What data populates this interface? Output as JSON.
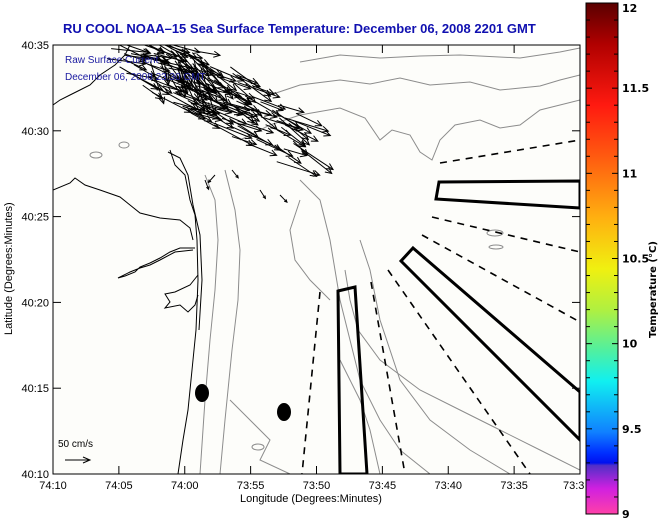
{
  "title": "RU COOL  NOAA–15  Sea Surface Temperature:  December 06, 2008 2201 GMT",
  "overlay": {
    "line1": "Raw Surface Current",
    "line2": "December 06, 2008 23:30 GMT"
  },
  "axes": {
    "xlabel": "Longitude (Degrees:Minutes)",
    "ylabel": "Latitude (Degrees:Minutes)",
    "xticks": [
      "74:10",
      "74:05",
      "74:00",
      "73:55",
      "73:50",
      "73:45",
      "73:40",
      "73:35",
      "73:3"
    ],
    "yticks": [
      "40:35",
      "40:30",
      "40:25",
      "40:20",
      "40:15",
      "40:10"
    ]
  },
  "scale_arrow": {
    "label": "50 cm/s"
  },
  "colorbar": {
    "label": "Temperature (°C)",
    "ticks": [
      "12",
      "11.5",
      "11",
      "10.5",
      "10",
      "9.5",
      "9"
    ],
    "range": [
      9,
      12
    ],
    "colors": {
      "top": "#6a0000",
      "red": "#ff1010",
      "orange": "#ff9a10",
      "yellow": "#f0f000",
      "lightgreen": "#60f080",
      "cyan": "#00f0f0",
      "blue": "#0050ff",
      "darkblue": "#0010f0",
      "purple": "#6030c0",
      "magenta": "#ff20d0",
      "pink": "#ff40a0"
    }
  },
  "map": {
    "coastline_color": "#000000",
    "bathymetry_color": "#8c8c8c",
    "features": [
      "current-vectors",
      "coastline",
      "bathymetry-contours",
      "shipping-lanes",
      "disposal-zones",
      "buoy-markers"
    ]
  }
}
